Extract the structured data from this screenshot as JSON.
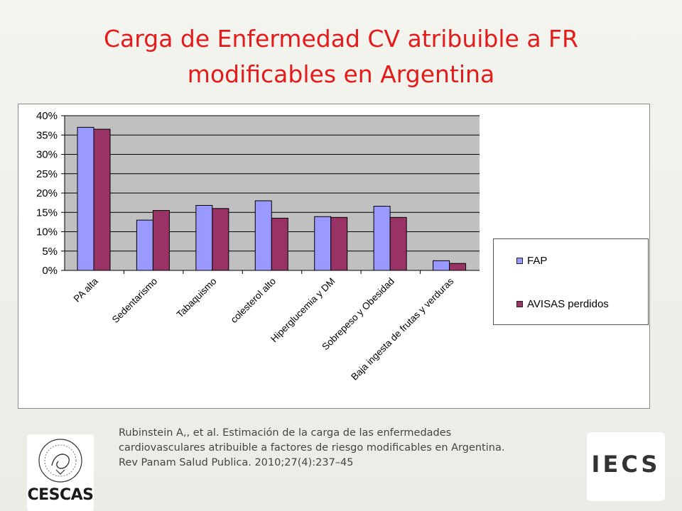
{
  "slide": {
    "title_line1": "Carga de Enfermedad CV atribuible a FR",
    "title_line2": "modificables en Argentina"
  },
  "citation": {
    "line1": "Rubinstein A,, et al. Estimación de la carga de las enfermedades",
    "line2": "cardiovasculares atribuible a factores de riesgo modificables en Argentina.",
    "line3": "Rev Panam Salud Publica. 2010;27(4):237–45"
  },
  "logos": {
    "left": "CESCAS",
    "right": "IECS"
  },
  "colors": {
    "title": "#e31b1b",
    "plot_area": "#c0c0c0",
    "FAP": "#9999ff",
    "AVISAS perdidos": "#993366"
  },
  "chart_data": {
    "type": "bar",
    "categories": [
      "PA alta",
      "Sedentarismo",
      "Tabaquismo",
      "colesterol alto",
      "Hiperglucemia y DM",
      "Sobrepeso y Obesidad",
      "Baja ingesta de frutas y verduras"
    ],
    "series": [
      {
        "name": "FAP",
        "values": [
          37,
          13,
          16.8,
          18,
          13.9,
          16.6,
          2.5
        ]
      },
      {
        "name": "AVISAS perdidos",
        "values": [
          36.5,
          15.5,
          16,
          13.5,
          13.7,
          13.7,
          1.8
        ]
      }
    ],
    "ylim": [
      0,
      40
    ],
    "yticks": [
      "0%",
      "5%",
      "10%",
      "15%",
      "20%",
      "25%",
      "30%",
      "35%",
      "40%"
    ],
    "ytick_values": [
      0,
      5,
      10,
      15,
      20,
      25,
      30,
      35,
      40
    ],
    "grid": true,
    "legend_position": "right"
  }
}
